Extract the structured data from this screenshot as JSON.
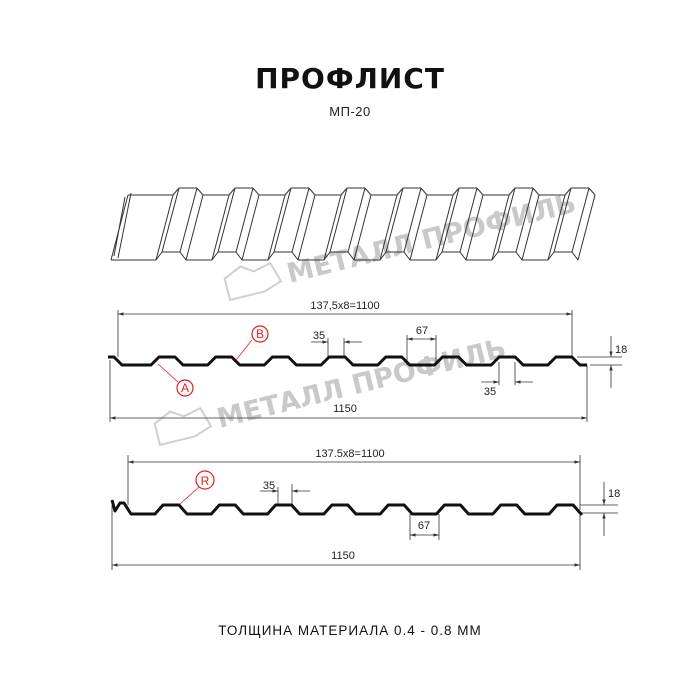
{
  "header": {
    "title": "ПРОФЛИСТ",
    "subtitle": "МП-20"
  },
  "watermark": {
    "text": "МЕТАЛЛ ПРОФИЛЬ",
    "color": "#c9c9c9"
  },
  "drawing_1": {
    "pitch_label": "137,5x8=1100",
    "width_label": "1150",
    "rib_top_label": "35",
    "rib_bottom_label": "35",
    "valley_label": "67",
    "height_label": "18",
    "callouts": [
      "B",
      "A"
    ]
  },
  "drawing_2": {
    "pitch_label": "137.5x8=1100",
    "width_label": "1150",
    "rib_top_label": "35",
    "valley_label": "67",
    "height_label": "18",
    "callouts": [
      "R"
    ]
  },
  "footer": {
    "thickness": "ТОЛЩИНА МАТЕРИАЛА 0.4 - 0.8 ММ"
  },
  "colors": {
    "line": "#111111",
    "callout": "#e31e24",
    "dimension": "#333333"
  }
}
